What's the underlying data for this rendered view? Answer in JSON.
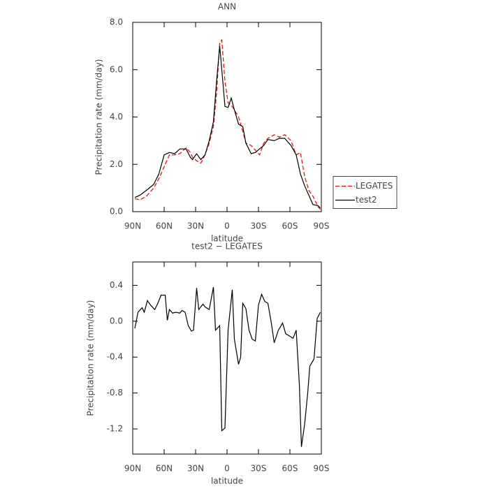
{
  "chart_data": [
    {
      "type": "line",
      "title": "ANN",
      "x_label": "latitude",
      "y_label": "Precipitation rate (mm/day)",
      "x": [
        88,
        83,
        77,
        70,
        65,
        60,
        55,
        50,
        45,
        39,
        35,
        33,
        29,
        25,
        21,
        17,
        13,
        10,
        7,
        5,
        2,
        -1,
        -4,
        -7,
        -11,
        -15,
        -18,
        -23,
        -27,
        -31,
        -35,
        -39,
        -45,
        -50,
        -55,
        -61,
        -66,
        -70,
        -74,
        -78,
        -82,
        -87,
        -89
      ],
      "series": [
        {
          "name": "LEGATES",
          "color": "#ff0000",
          "linestyle": "dashed",
          "values": [
            0.55,
            0.5,
            0.65,
            1.0,
            1.4,
            1.9,
            2.4,
            2.4,
            2.45,
            2.7,
            2.5,
            2.3,
            2.15,
            2.05,
            2.4,
            2.9,
            3.6,
            5.0,
            7.15,
            7.25,
            5.5,
            4.6,
            4.5,
            4.3,
            4.0,
            3.4,
            2.9,
            2.8,
            2.6,
            2.4,
            2.9,
            3.1,
            3.25,
            3.15,
            3.25,
            3.0,
            2.4,
            2.5,
            1.5,
            0.9,
            0.65,
            0.2,
            0.1
          ]
        },
        {
          "name": "test2",
          "color": "#000000",
          "linestyle": "solid",
          "values": [
            0.6,
            0.7,
            0.9,
            1.15,
            1.6,
            2.4,
            2.5,
            2.45,
            2.65,
            2.65,
            2.3,
            2.2,
            2.45,
            2.2,
            2.4,
            3.0,
            3.8,
            5.5,
            7.0,
            6.0,
            4.45,
            4.4,
            4.8,
            4.3,
            3.7,
            3.6,
            2.9,
            2.45,
            2.5,
            2.65,
            2.8,
            3.05,
            3.0,
            3.1,
            3.1,
            2.8,
            2.4,
            1.6,
            1.1,
            0.7,
            0.3,
            0.25,
            0.15
          ]
        }
      ],
      "xlim": [
        90,
        -90
      ],
      "xticks": [
        {
          "value": 90,
          "label": "90N"
        },
        {
          "value": 60,
          "label": "60N"
        },
        {
          "value": 30,
          "label": "30N"
        },
        0,
        {
          "value": -30,
          "label": "30S"
        },
        {
          "value": -60,
          "label": "60S"
        },
        {
          "value": -90,
          "label": "90S"
        }
      ],
      "ylim": [
        0,
        8
      ],
      "yticks": [
        {
          "value": 0,
          "label": "0.0"
        },
        {
          "value": 2,
          "label": "2.0"
        },
        {
          "value": 4,
          "label": "4.0"
        },
        {
          "value": 6,
          "label": "6.0"
        },
        {
          "value": 8,
          "label": "8.0"
        }
      ],
      "legend": "right"
    },
    {
      "type": "line",
      "title": "test2 − LEGATES",
      "x_label": "latitude",
      "y_label": "Precipitation rate (mm/day)",
      "x": [
        88,
        85,
        81,
        79,
        76,
        73,
        69,
        66,
        63,
        59,
        57,
        55,
        52,
        49,
        45,
        43,
        40,
        37,
        34,
        32,
        29,
        27,
        23,
        21,
        17,
        13,
        11,
        7,
        5,
        2,
        -1,
        -5,
        -7,
        -11,
        -13,
        -15,
        -18,
        -21,
        -24,
        -27,
        -30,
        -33,
        -36,
        -39,
        -42,
        -45,
        -49,
        -53,
        -56,
        -59,
        -63,
        -66,
        -69,
        -71,
        -74,
        -77,
        -79,
        -83,
        -86,
        -89
      ],
      "series": [
        {
          "name": "test2 − LEGATES",
          "color": "#000000",
          "linestyle": "solid",
          "values": [
            -0.08,
            0.1,
            0.15,
            0.1,
            0.23,
            0.18,
            0.13,
            0.2,
            0.29,
            0.29,
            0.01,
            0.13,
            0.09,
            0.1,
            0.09,
            0.12,
            0.1,
            -0.05,
            -0.11,
            -0.1,
            0.37,
            0.13,
            0.19,
            0.16,
            0.13,
            0.38,
            -0.1,
            -0.05,
            -1.22,
            -1.19,
            -0.1,
            0.35,
            -0.2,
            -0.48,
            -0.4,
            0.2,
            0.14,
            -0.1,
            -0.2,
            -0.22,
            0.18,
            0.3,
            0.22,
            0.2,
            0.0,
            -0.24,
            -0.1,
            -0.02,
            -0.14,
            -0.16,
            -0.19,
            -0.1,
            -0.7,
            -1.4,
            -1.15,
            -0.8,
            -0.5,
            -0.42,
            0.03,
            0.1
          ]
        }
      ],
      "xlim": [
        90,
        -90
      ],
      "xticks": [
        {
          "value": 90,
          "label": "90N"
        },
        {
          "value": 60,
          "label": "60N"
        },
        {
          "value": 30,
          "label": "30N"
        },
        0,
        {
          "value": -30,
          "label": "30S"
        },
        {
          "value": -60,
          "label": "60S"
        },
        {
          "value": -90,
          "label": "90S"
        }
      ],
      "ylim": [
        -1.48,
        0.66
      ],
      "yticks": [
        -1.2,
        -0.8,
        -0.4,
        {
          "value": 0,
          "label": "0.0"
        },
        0.4
      ]
    }
  ]
}
